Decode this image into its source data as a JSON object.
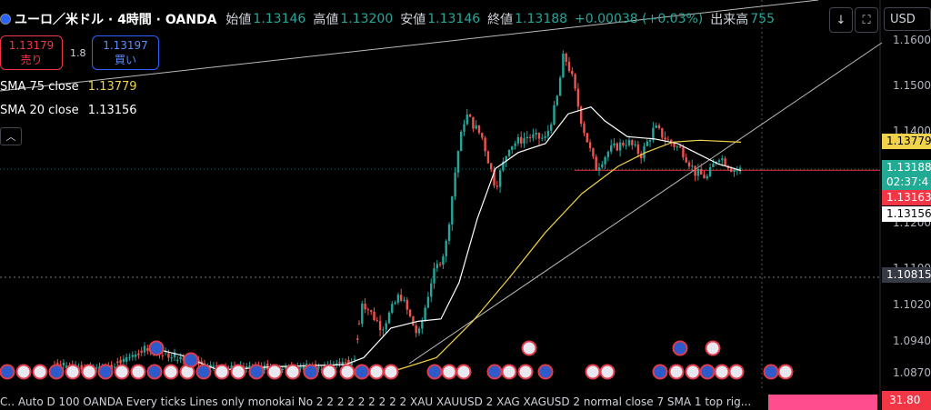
{
  "header": {
    "symbol": "ユーロ／米ドル · 4時間 · OANDA",
    "open_label": "始値",
    "open": "1.13146",
    "high_label": "高値",
    "high": "1.13200",
    "low_label": "安値",
    "low": "1.13146",
    "close_label": "終値",
    "close": "1.13188",
    "change": "+0.00038 (+0.03%)",
    "volume_label": "出来高",
    "volume": "755"
  },
  "trade": {
    "sell_price": "1.13179",
    "sell_label": "売り",
    "spread": "1.8",
    "buy_price": "1.13197",
    "buy_label": "買い"
  },
  "indicators": [
    {
      "label": "SMA 75 close",
      "value": "1.13779",
      "color": "#f0d34a"
    },
    {
      "label": "SMA 20 close",
      "value": "1.13156",
      "color": "#ffffff"
    }
  ],
  "toolbar": {
    "currency": "USD",
    "collapse_icon": "chevron-up-icon"
  },
  "price_axis": {
    "ticks": [
      "1.16000",
      "1.15000",
      "1.14000",
      "1.13000",
      "1.12000",
      "1.11000",
      "1.10200",
      "1.09400",
      "1.08700"
    ],
    "labels": [
      {
        "text": "1.13779",
        "color": "#f0d34a",
        "price": 1.13779
      },
      {
        "text": "1.13188",
        "sub": "02:37:4",
        "color": "#22ab94",
        "price": 1.13188
      },
      {
        "text": "1.13163",
        "color": "#f23645",
        "price": 1.13163
      },
      {
        "text": "1.13156",
        "color": "#ffffff",
        "price": 1.13156
      },
      {
        "text": "1.10815",
        "color": "#363a45",
        "price": 1.10815
      }
    ]
  },
  "bottom_bar": {
    "script_text": "C.. Auto D 100 OANDA Every ticks Lines only monokai No 2 2 2 2 2 2 2 2 2 XAU XAUUSD 2 XAG XAGUSD 2 normal close 7 SMA 1 top rig...",
    "rsi_value": "31.80"
  },
  "chart_data": {
    "type": "candlestick",
    "title": "ユーロ／米ドル · 4時間 · OANDA",
    "ylim": [
      1.0855,
      1.1645
    ],
    "y_ticks": [
      1.16,
      1.15,
      1.14,
      1.13,
      1.12,
      1.11,
      1.102,
      1.094,
      1.087
    ],
    "horizontal_lines": [
      1.13163,
      1.10815
    ],
    "current_price": 1.13188,
    "series": [
      {
        "name": "SMA 75 close",
        "last": 1.13779,
        "color": "#f0d34a"
      },
      {
        "name": "SMA 20 close",
        "last": 1.13156,
        "color": "#ffffff"
      }
    ],
    "event_markers": "economic calendar icons (US / EU flags) along the bottom"
  }
}
